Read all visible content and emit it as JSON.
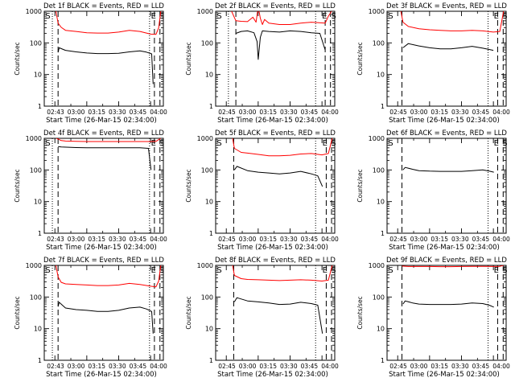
{
  "figure": {
    "common": {
      "type": "line",
      "ylabel": "Counts/sec",
      "xlabel": "Start Time (26-Mar-15 02:34:00)",
      "yscale": "log",
      "ylim": [
        1,
        1000
      ],
      "yticks": [
        1,
        10,
        100,
        1000
      ],
      "ytick_labels": [
        "1",
        "10",
        "100",
        "1000"
      ],
      "xlim": [
        40,
        96
      ],
      "xticks": [
        45,
        60,
        75,
        90
      ],
      "xticks_minor": [
        52.5,
        67.5,
        82.5
      ],
      "xtick_labels": [
        "02:45",
        "03:00",
        "03:15",
        "03:30",
        "03:45",
        "04:00"
      ],
      "line_colors": {
        "events": "#000000",
        "lld": "#ff0000"
      },
      "marker_labels": {
        "S": "S",
        "E": "E"
      }
    }
  },
  "chart_data": [
    {
      "type": "line",
      "title": "Det 1f BLACK = Events, RED = LLD",
      "xlabel": "Start Time (26-Mar-15 02:34:00)",
      "ylabel": "Counts/sec",
      "xlim": [
        40,
        96
      ],
      "ylim": [
        1,
        1000
      ],
      "yscale": "log",
      "xtick_labels": [
        "02:43",
        "03:00",
        "03:15",
        "03:30",
        "03:45",
        "04:00"
      ],
      "markers": {
        "dotted": [
          43.8,
          89.5
        ],
        "dashed": [
          46.5,
          91.8,
          94.4
        ],
        "S_at": 40.5,
        "E_at": 90.2,
        "S2_at": 94.0
      },
      "series": [
        {
          "name": "Events",
          "x": [
            46.5,
            47,
            50,
            55,
            60,
            65,
            70,
            75,
            80,
            85,
            88,
            90.5,
            91.2
          ],
          "y": [
            50,
            70,
            58,
            52,
            48,
            46,
            46,
            47,
            52,
            56,
            51,
            45,
            5
          ]
        },
        {
          "name": "LLD",
          "x": [
            45.5,
            46.5,
            48,
            50,
            55,
            60,
            65,
            70,
            75,
            80,
            85,
            90,
            92.5,
            93.8,
            94.8
          ],
          "y": [
            1000,
            420,
            310,
            250,
            230,
            210,
            205,
            205,
            220,
            250,
            230,
            190,
            185,
            300,
            1000
          ]
        }
      ]
    },
    {
      "type": "line",
      "title": "Det 2f BLACK = Events, RED = LLD",
      "xlabel": "Start Time (26-Mar-15 02:34:00)",
      "ylabel": "Counts/sec",
      "xlim": [
        40,
        96
      ],
      "ylim": [
        1,
        1000
      ],
      "yscale": "log",
      "xtick_labels": [
        "02:45",
        "03:00",
        "03:15",
        "03:30",
        "03:45",
        "04:00"
      ],
      "markers": {
        "dotted": [
          46.0,
          87.0
        ],
        "dashed": [
          49.5,
          91.5,
          94.0
        ],
        "S_at": 40.5,
        "E_at": 90.0,
        "S2_at": 94.3
      },
      "series": [
        {
          "name": "Events",
          "x": [
            49.5,
            52,
            55,
            58,
            59.5,
            60,
            61,
            62,
            65,
            70,
            75,
            80,
            85,
            89,
            91.5
          ],
          "y": [
            200,
            230,
            240,
            210,
            110,
            30,
            150,
            240,
            230,
            220,
            240,
            230,
            210,
            200,
            60
          ]
        },
        {
          "name": "LLD",
          "x": [
            47.5,
            49.5,
            52,
            55,
            57.5,
            59,
            60,
            61,
            62,
            63,
            65,
            70,
            75,
            80,
            85,
            91.5,
            93,
            94.5
          ],
          "y": [
            1000,
            500,
            480,
            470,
            650,
            450,
            1400,
            600,
            380,
            550,
            420,
            380,
            380,
            420,
            450,
            420,
            700,
            1000
          ]
        }
      ]
    },
    {
      "type": "line",
      "title": "Det 3f BLACK = Events, RED = LLD",
      "xlabel": "Start Time (26-Mar-15 02:34:00)",
      "ylabel": "Counts/sec",
      "xlim": [
        40,
        96
      ],
      "ylim": [
        1,
        1000
      ],
      "yscale": "log",
      "xtick_labels": [
        "02:45",
        "03:00",
        "03:15",
        "03:30",
        "03:45",
        "04:00"
      ],
      "markers": {
        "dotted": [
          87.5
        ],
        "dashed": [
          47.0,
          92.0,
          94.6
        ],
        "S_at": 40.5,
        "E_at": 90.2,
        "S2_at": 94.2
      },
      "series": [
        {
          "name": "Events",
          "x": [
            47.5,
            50,
            55,
            60,
            65,
            70,
            75,
            80,
            85,
            88,
            90
          ],
          "y": [
            70,
            95,
            80,
            70,
            65,
            65,
            70,
            78,
            68,
            62,
            58
          ]
        },
        {
          "name": "LLD",
          "x": [
            46.5,
            47.5,
            50,
            55,
            60,
            65,
            70,
            75,
            80,
            85,
            90,
            93,
            94.8
          ],
          "y": [
            1000,
            450,
            330,
            280,
            260,
            250,
            240,
            240,
            250,
            240,
            220,
            230,
            1000
          ]
        }
      ]
    },
    {
      "type": "line",
      "title": "Det 4f BLACK = Events, RED = LLD",
      "xlabel": "Start Time (26-Mar-15 02:34:00)",
      "ylabel": "Counts/sec",
      "xlim": [
        40,
        96
      ],
      "ylim": [
        1,
        1000
      ],
      "yscale": "log",
      "xtick_labels": [
        "02:43",
        "03:00",
        "03:15",
        "03:30",
        "03:45",
        "04:00"
      ],
      "markers": {
        "dotted": [
          43.8,
          89.5
        ],
        "dashed": [
          46.5,
          91.8,
          94.4
        ],
        "S_at": 40.5,
        "E_at": 90.2,
        "S2_at": 94.0
      },
      "series": [
        {
          "name": "Events",
          "x": [
            46.5,
            48,
            55,
            60,
            65,
            70,
            75,
            80,
            85,
            89,
            90.2
          ],
          "y": [
            550,
            530,
            510,
            500,
            500,
            500,
            500,
            500,
            500,
            480,
            100
          ]
        },
        {
          "name": "LLD",
          "x": [
            45.8,
            46.5,
            48,
            50,
            55,
            60,
            65,
            70,
            75,
            80,
            85,
            90,
            92.5,
            94.8
          ],
          "y": [
            1000,
            950,
            850,
            820,
            800,
            790,
            790,
            790,
            790,
            790,
            790,
            790,
            800,
            1000
          ]
        }
      ]
    },
    {
      "type": "line",
      "title": "Det 5f BLACK = Events, RED = LLD",
      "xlabel": "Start Time (26-Mar-15 02:34:00)",
      "ylabel": "Counts/sec",
      "xlim": [
        40,
        96
      ],
      "ylim": [
        1,
        1000
      ],
      "yscale": "log",
      "xtick_labels": [
        "02:45",
        "03:00",
        "03:15",
        "03:30",
        "03:45",
        "04:00"
      ],
      "markers": {
        "dotted": [
          87.0
        ],
        "dashed": [
          48.5,
          92.0,
          94.5
        ],
        "S_at": 40.5,
        "E_at": 90.2,
        "S2_at": 94.2
      },
      "series": [
        {
          "name": "Events",
          "x": [
            48.8,
            50,
            55,
            60,
            65,
            70,
            75,
            80,
            85,
            88,
            90.2
          ],
          "y": [
            100,
            130,
            95,
            85,
            80,
            75,
            80,
            90,
            75,
            65,
            30
          ]
        },
        {
          "name": "LLD",
          "x": [
            48,
            48.8,
            52,
            55,
            60,
            65,
            70,
            75,
            80,
            85,
            90,
            93,
            94.8
          ],
          "y": [
            1000,
            480,
            360,
            340,
            310,
            280,
            280,
            290,
            320,
            330,
            300,
            330,
            1000
          ]
        }
      ]
    },
    {
      "type": "line",
      "title": "Det 6f BLACK = Events, RED = LLD",
      "xlabel": "Start Time (26-Mar-15 02:34:00)",
      "ylabel": "Counts/sec",
      "xlim": [
        40,
        96
      ],
      "ylim": [
        1,
        1000
      ],
      "yscale": "log",
      "xtick_labels": [
        "02:45",
        "03:00",
        "03:15",
        "03:30",
        "03:45",
        "04:00"
      ],
      "markers": {
        "dotted": [
          87.5
        ],
        "dashed": [
          47.0,
          92.0,
          94.6
        ],
        "S_at": 40.5,
        "E_at": 90.2,
        "S2_at": 94.2
      },
      "series": [
        {
          "name": "Events",
          "x": [
            47.5,
            48.5,
            52,
            55,
            60,
            65,
            70,
            75,
            80,
            85,
            88,
            90.2
          ],
          "y": [
            100,
            120,
            105,
            95,
            92,
            90,
            90,
            90,
            95,
            100,
            92,
            85
          ]
        }
      ]
    },
    {
      "type": "line",
      "title": "Det 7f BLACK = Events, RED = LLD",
      "xlabel": "Start Time (26-Mar-15 02:34:00)",
      "ylabel": "Counts/sec",
      "xlim": [
        40,
        96
      ],
      "ylim": [
        1,
        1000
      ],
      "yscale": "log",
      "xtick_labels": [
        "02:43",
        "03:00",
        "03:15",
        "03:30",
        "03:45",
        "04:00"
      ],
      "markers": {
        "dotted": [
          43.8,
          89.5
        ],
        "dashed": [
          46.5,
          91.8,
          94.4
        ],
        "S_at": 40.5,
        "E_at": 90.2,
        "S2_at": 94.0
      },
      "series": [
        {
          "name": "Events",
          "x": [
            46.5,
            47,
            50,
            55,
            60,
            65,
            70,
            75,
            80,
            85,
            88,
            90.5,
            91.2
          ],
          "y": [
            50,
            68,
            45,
            40,
            38,
            35,
            35,
            38,
            45,
            48,
            42,
            35,
            7
          ]
        },
        {
          "name": "LLD",
          "x": [
            45.5,
            46.5,
            48,
            50,
            55,
            60,
            65,
            70,
            75,
            80,
            85,
            90,
            92.5,
            93.8,
            94.8
          ],
          "y": [
            1000,
            430,
            290,
            260,
            250,
            240,
            230,
            230,
            240,
            270,
            250,
            220,
            210,
            320,
            1000
          ]
        }
      ]
    },
    {
      "type": "line",
      "title": "Det 8f BLACK = Events, RED = LLD",
      "xlabel": "Start Time (26-Mar-15 02:34:00)",
      "ylabel": "Counts/sec",
      "xlim": [
        40,
        96
      ],
      "ylim": [
        1,
        1000
      ],
      "yscale": "log",
      "xtick_labels": [
        "02:45",
        "03:00",
        "03:15",
        "03:30",
        "03:45",
        "04:00"
      ],
      "markers": {
        "dotted": [
          87.0
        ],
        "dashed": [
          48.5,
          92.0,
          94.5
        ],
        "S_at": 40.5,
        "E_at": 90.2,
        "S2_at": 94.2
      },
      "series": [
        {
          "name": "Events",
          "x": [
            48.8,
            50,
            55,
            60,
            65,
            70,
            75,
            80,
            85,
            88,
            90.2
          ],
          "y": [
            70,
            95,
            75,
            70,
            65,
            58,
            60,
            68,
            62,
            55,
            7
          ]
        },
        {
          "name": "LLD",
          "x": [
            48,
            48.8,
            52,
            55,
            60,
            65,
            70,
            75,
            80,
            85,
            90,
            93,
            94.8
          ],
          "y": [
            1000,
            480,
            380,
            360,
            350,
            340,
            330,
            340,
            350,
            340,
            320,
            340,
            1000
          ]
        }
      ]
    },
    {
      "type": "line",
      "title": "Det 9f BLACK = Events, RED = LLD",
      "xlabel": "Start Time (26-Mar-15 02:34:00)",
      "ylabel": "Counts/sec",
      "xlim": [
        40,
        96
      ],
      "ylim": [
        1,
        1000
      ],
      "yscale": "log",
      "xtick_labels": [
        "02:45",
        "03:00",
        "03:15",
        "03:30",
        "03:45",
        "04:00"
      ],
      "markers": {
        "dotted": [
          87.5
        ],
        "dashed": [
          47.0,
          92.0,
          94.6
        ],
        "S_at": 40.5,
        "E_at": 90.2,
        "S2_at": 94.2
      },
      "series": [
        {
          "name": "Events",
          "x": [
            47.5,
            48.5,
            52,
            55,
            60,
            65,
            70,
            75,
            80,
            85,
            88,
            90.2
          ],
          "y": [
            60,
            75,
            65,
            60,
            58,
            58,
            58,
            60,
            65,
            62,
            55,
            48
          ]
        },
        {
          "name": "LLD",
          "x": [
            47,
            50,
            55,
            60,
            65,
            70,
            75,
            80,
            85,
            90,
            93,
            94.8
          ],
          "y": [
            950,
            920,
            920,
            920,
            910,
            910,
            920,
            930,
            930,
            920,
            930,
            1000
          ]
        }
      ]
    }
  ]
}
